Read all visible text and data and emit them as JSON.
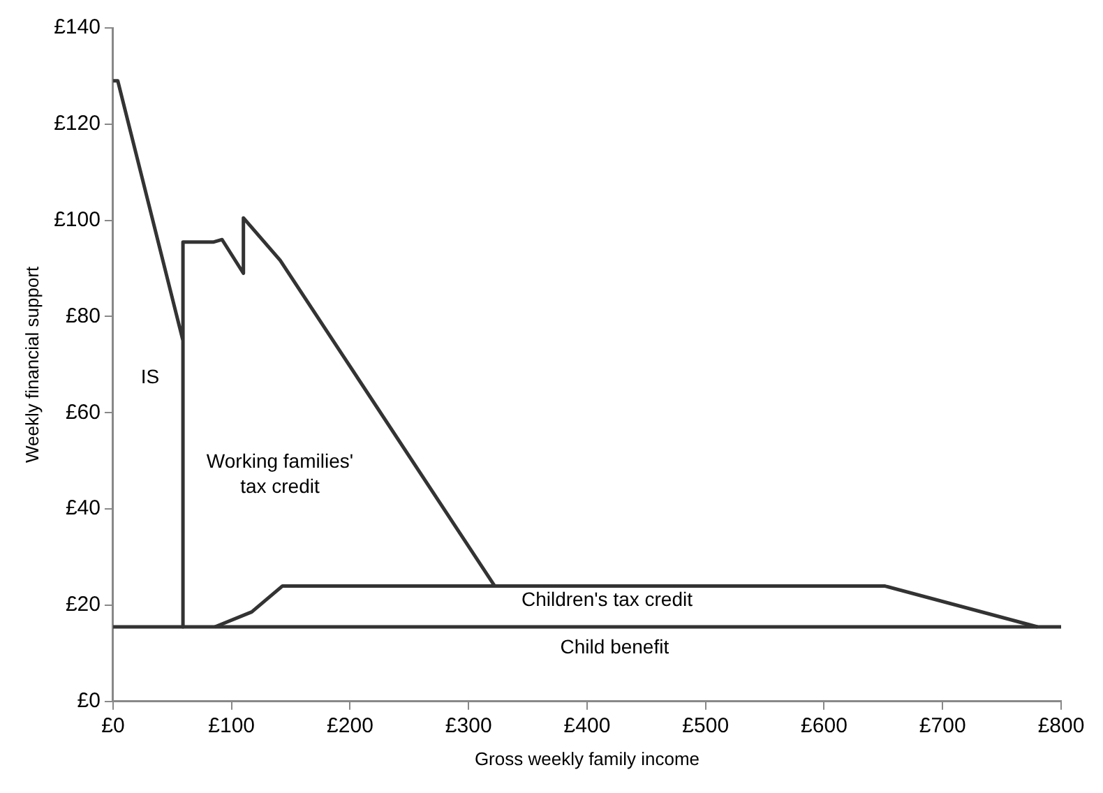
{
  "chart_data": {
    "type": "line",
    "xlabel": "Gross weekly family income",
    "ylabel": "Weekly financial support",
    "series": [
      {
        "color": "#333333",
        "x": [
          0,
          4,
          59,
          59,
          59,
          85,
          92,
          110,
          110,
          141,
          322
        ],
        "values": [
          129,
          129,
          75,
          15.5,
          95.5,
          95.5,
          96,
          89,
          100.5,
          91.7,
          24
        ]
      },
      {
        "color": "#333333",
        "x": [
          86,
          117,
          143,
          651,
          780
        ],
        "values": [
          15.5,
          18.6,
          24,
          24,
          15.5
        ]
      },
      {
        "color": "#333333",
        "x": [
          0,
          800
        ],
        "values": [
          15.5,
          15.5
        ]
      }
    ],
    "xlim": [
      0,
      800
    ],
    "xticks": [
      {
        "value": 0,
        "label": "£0"
      },
      {
        "value": 100,
        "label": "£100"
      },
      {
        "value": 200,
        "label": "£200"
      },
      {
        "value": 300,
        "label": "£300"
      },
      {
        "value": 400,
        "label": "£400"
      },
      {
        "value": 500,
        "label": "£500"
      },
      {
        "value": 600,
        "label": "£600"
      },
      {
        "value": 700,
        "label": "£700"
      },
      {
        "value": 800,
        "label": "£800"
      }
    ],
    "ylim": [
      0,
      140
    ],
    "yticks": [
      {
        "value": 0,
        "label": "£0"
      },
      {
        "value": 20,
        "label": "£20"
      },
      {
        "value": 40,
        "label": "£40"
      },
      {
        "value": 60,
        "label": "£60"
      },
      {
        "value": 80,
        "label": "£80"
      },
      {
        "value": 100,
        "label": "£100"
      },
      {
        "value": 120,
        "label": "£120"
      },
      {
        "value": 140,
        "label": "£140"
      }
    ],
    "grid": false,
    "legend": false,
    "marker": "none",
    "line_style": "solid",
    "annotations": [
      "IS",
      "Working families'\ntax credit",
      "Children's tax credit",
      "Child benefit"
    ]
  }
}
